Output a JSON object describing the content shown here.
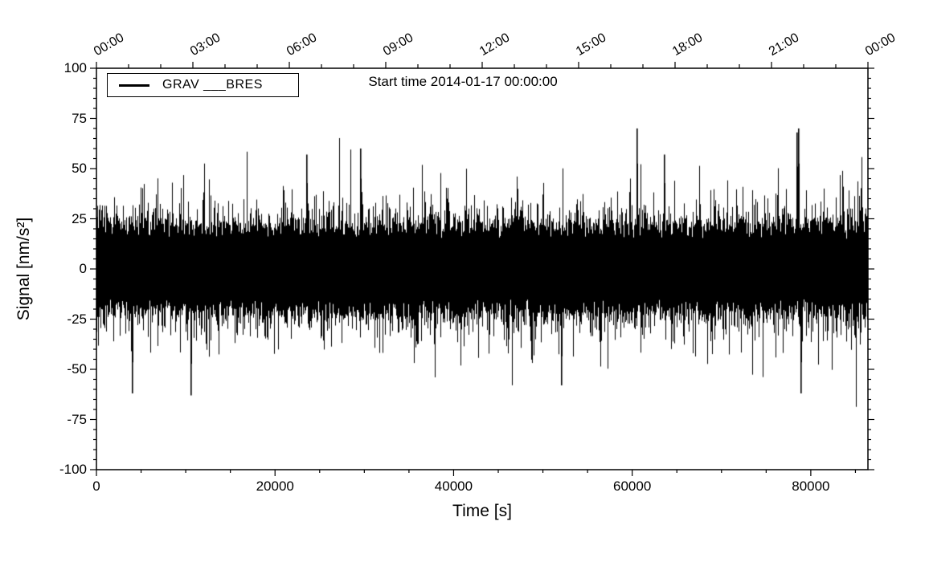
{
  "chart_data": {
    "type": "line",
    "title": "Start time 2014-01-17 00:00:00",
    "xlabel": "Time [s]",
    "ylabel": "Signal [nm/s²]",
    "xlim": [
      0,
      86400
    ],
    "ylim": [
      -100,
      100
    ],
    "x_major_ticks": [
      {
        "value": 0,
        "label": "0"
      },
      {
        "value": 20000,
        "label": "20000"
      },
      {
        "value": 40000,
        "label": "40000"
      },
      {
        "value": 60000,
        "label": "60000"
      },
      {
        "value": 80000,
        "label": "80000"
      }
    ],
    "x_minor_interval": 5000,
    "y_major_interval": 25,
    "y_minor_interval": 5,
    "top_axis": {
      "unit": "time of day",
      "tick_interval_s": 10800,
      "minor_interval_s": 3600,
      "tick_labels": [
        "00:00",
        "03:00",
        "06:00",
        "09:00",
        "12:00",
        "15:00",
        "18:00",
        "21:00",
        "00:00"
      ]
    },
    "legend": {
      "label": "GRAV ___BRES",
      "position": "top-left",
      "line_color": "#000000"
    },
    "series": [
      {
        "name": "GRAV ___BRES",
        "color": "#000000",
        "description": "dense broadband noise centered on 0",
        "core_band_amplitude": 22,
        "typical_peak": 45,
        "max_peak": 70
      }
    ],
    "notable_spikes": [
      {
        "x_s": 4000,
        "value": -62
      },
      {
        "x_s": 10500,
        "value": -63
      },
      {
        "x_s": 23500,
        "value": 57
      },
      {
        "x_s": 29500,
        "value": 60
      },
      {
        "x_s": 52000,
        "value": -58
      },
      {
        "x_s": 60500,
        "value": 70
      },
      {
        "x_s": 63500,
        "value": 57
      },
      {
        "x_s": 78400,
        "value": 68
      },
      {
        "x_s": 78600,
        "value": 70
      },
      {
        "x_s": 78800,
        "value": -62
      }
    ],
    "seed": 20140117
  }
}
